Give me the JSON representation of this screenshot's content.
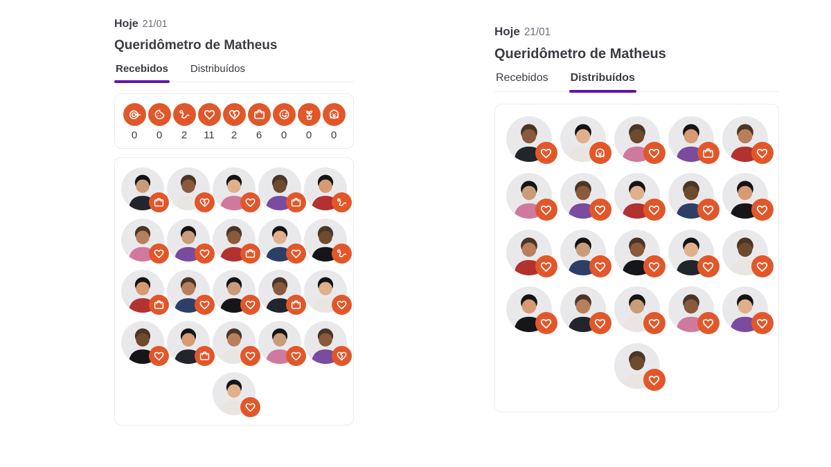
{
  "theme": {
    "accent_orange": "#e2572a",
    "accent_purple": "#5c16a8"
  },
  "panels": [
    {
      "date_label": "Hoje",
      "date_value": "21/01",
      "title": "Queridômetro de Matheus",
      "tabs": [
        {
          "label": "Recebidos",
          "active": true
        },
        {
          "label": "Distribuídos",
          "active": false
        }
      ],
      "summary": [
        {
          "icon": "target-icon",
          "count": 0
        },
        {
          "icon": "cookie-icon",
          "count": 0
        },
        {
          "icon": "snake-icon",
          "count": 2
        },
        {
          "icon": "heart-icon",
          "count": 11
        },
        {
          "icon": "broken-heart-icon",
          "count": 2
        },
        {
          "icon": "suitcase-icon",
          "count": 6
        },
        {
          "icon": "tongue-face-icon",
          "count": 0
        },
        {
          "icon": "plant-icon",
          "count": 0
        },
        {
          "icon": "scream-face-icon",
          "count": 0
        }
      ],
      "grid": [
        [
          "suitcase-icon",
          "broken-heart-icon",
          "heart-icon",
          "suitcase-icon",
          "snake-icon"
        ],
        [
          "heart-icon",
          "heart-icon",
          "suitcase-icon",
          "heart-icon",
          "snake-icon"
        ],
        [
          "suitcase-icon",
          "heart-icon",
          "heart-icon",
          "suitcase-icon",
          "heart-icon"
        ],
        [
          "heart-icon",
          "suitcase-icon",
          "heart-icon",
          "heart-icon",
          "broken-heart-icon"
        ],
        [
          "heart-icon"
        ]
      ]
    },
    {
      "date_label": "Hoje",
      "date_value": "21/01",
      "title": "Queridômetro de Matheus",
      "tabs": [
        {
          "label": "Recebidos",
          "active": false
        },
        {
          "label": "Distribuídos",
          "active": true
        }
      ],
      "grid": [
        [
          "heart-icon",
          "scream-face-icon",
          "heart-icon",
          "suitcase-icon",
          "heart-icon"
        ],
        [
          "heart-icon",
          "heart-icon",
          "heart-icon",
          "heart-icon",
          "heart-icon"
        ],
        [
          "heart-icon",
          "heart-icon",
          "heart-icon",
          "heart-icon",
          "heart-icon"
        ],
        [
          "heart-icon",
          "heart-icon",
          "heart-icon",
          "heart-icon",
          "heart-icon"
        ],
        [
          "heart-icon"
        ]
      ]
    }
  ]
}
